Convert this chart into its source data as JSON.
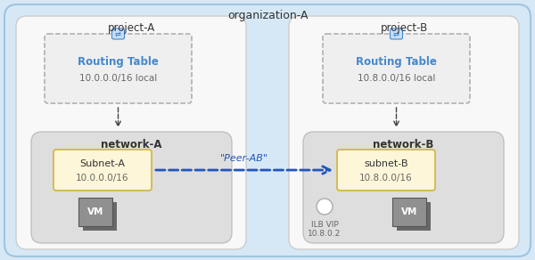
{
  "title_org": "organization-A",
  "title_proj_a": "project-A",
  "title_proj_b": "project-B",
  "title_net_a": "network-A",
  "title_net_b": "network-B",
  "subnet_a_label": "Subnet-A",
  "subnet_a_ip": "10.0.0.0/16",
  "subnet_b_label": "subnet-B",
  "subnet_b_ip": "10.8.0.0/16",
  "routing_a_label": "Routing Table",
  "routing_a_ip": "10.0.0.0/16 local",
  "routing_b_label": "Routing Table",
  "routing_b_ip": "10.8.0.0/16 local",
  "peer_label": "\"Peer-AB\"",
  "ilb_label": "ILB VIP\n10.8.0.2",
  "vm_label": "VM",
  "bg_org": "#d6e8f5",
  "bg_proj": "#f8f8f8",
  "bg_network": "#dedede",
  "bg_subnet": "#fdf6d8",
  "bg_routing": "#efefef",
  "border_org": "#a0c4e0",
  "border_proj": "#cccccc",
  "border_network": "#c0c0c0",
  "border_subnet": "#d4b84a",
  "border_routing_dash": "#aaaaaa",
  "color_routing_title": "#4488cc",
  "color_peer_arrow": "#2255bb",
  "color_vm": "#909090",
  "color_vm_dark": "#686868",
  "color_icon_bg": "#c8ddf5",
  "color_icon_border": "#4488cc",
  "color_text": "#333333",
  "color_text_gray": "#666666",
  "color_arrow_dashed": "#444444"
}
